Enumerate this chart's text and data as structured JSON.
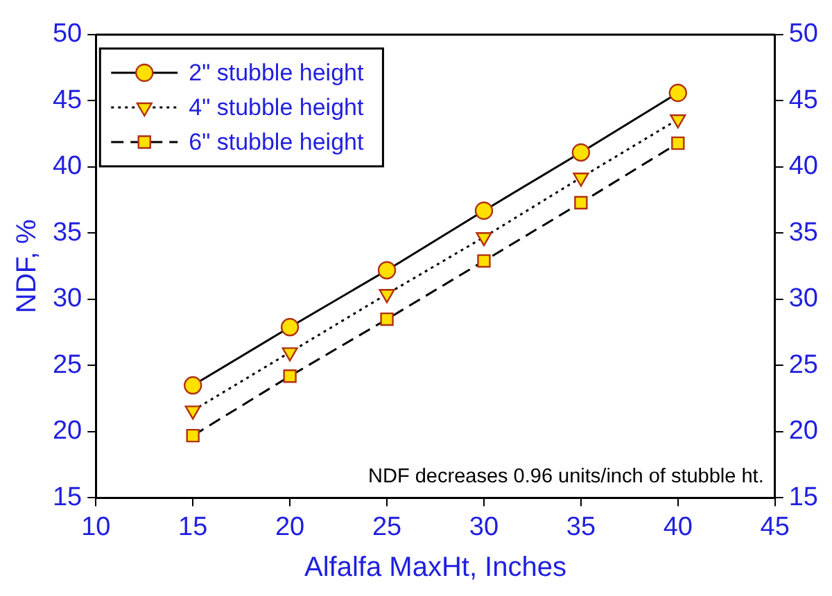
{
  "chart_data": {
    "type": "line",
    "xlabel": "Alfalfa MaxHt, Inches",
    "ylabel": "NDF, %",
    "x": [
      15,
      20,
      25,
      30,
      35,
      40
    ],
    "series": [
      {
        "name": "2\" stubble height",
        "color": "#000000",
        "marker": "circle",
        "line_style": "solid",
        "values": [
          23.5,
          27.9,
          32.2,
          36.7,
          41.1,
          45.6
        ]
      },
      {
        "name": "4\" stubble height",
        "color": "#000000",
        "marker": "triangle",
        "line_style": "dotted",
        "values": [
          21.6,
          26.0,
          30.4,
          34.7,
          39.2,
          43.6
        ]
      },
      {
        "name": "6\" stubble height",
        "color": "#000000",
        "marker": "square",
        "line_style": "dashed",
        "values": [
          19.7,
          24.2,
          28.5,
          32.9,
          37.3,
          41.8
        ]
      }
    ],
    "xlim": [
      10,
      45
    ],
    "xticks": [
      10,
      15,
      20,
      25,
      30,
      35,
      40,
      45
    ],
    "ylim": [
      15,
      50
    ],
    "yticks": [
      15,
      20,
      25,
      30,
      35,
      40,
      45,
      50
    ],
    "y2lim": [
      15,
      50
    ],
    "y2ticks": [
      15,
      20,
      25,
      30,
      35,
      40,
      45,
      50
    ],
    "annotations": [
      "NDF decreases 0.96 units/inch of stubble ht."
    ],
    "legend": "top left",
    "grid": false
  }
}
